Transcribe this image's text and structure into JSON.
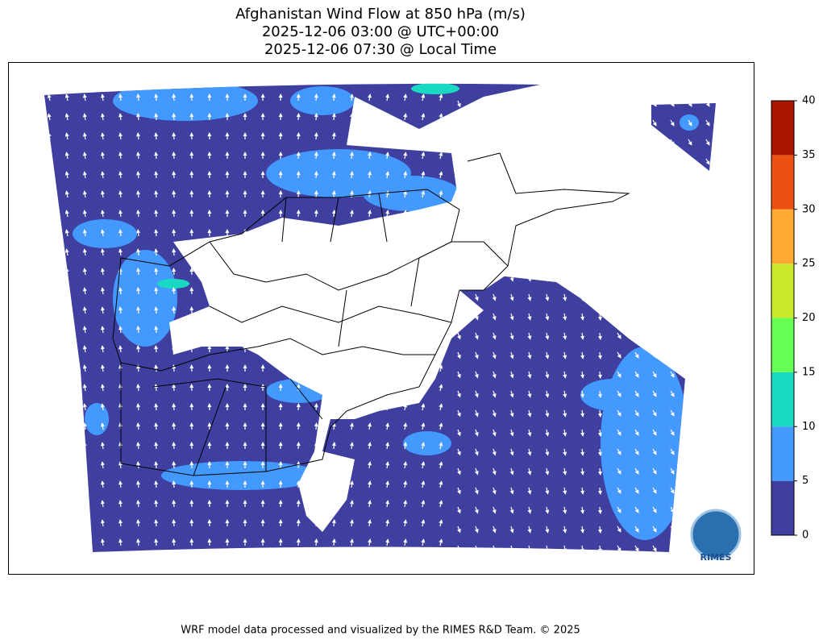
{
  "title": [
    "Afghanistan Wind Flow at 850 hPa (m/s)",
    "2025-12-06 03:00 @ UTC+00:00",
    "2025-12-06 07:30 @ Local Time"
  ],
  "colorbar": {
    "ticks": [
      0,
      5,
      10,
      15,
      20,
      25,
      30,
      35,
      40
    ],
    "colors": [
      "#3f3f9f",
      "#4499ff",
      "#1ad9c2",
      "#66ff55",
      "#cce82c",
      "#ffaa33",
      "#ec5112",
      "#a81400"
    ]
  },
  "logo_text": "RIMES",
  "footer": "WRF model data processed and visualized by the RIMES R&D Team. © 2025"
}
